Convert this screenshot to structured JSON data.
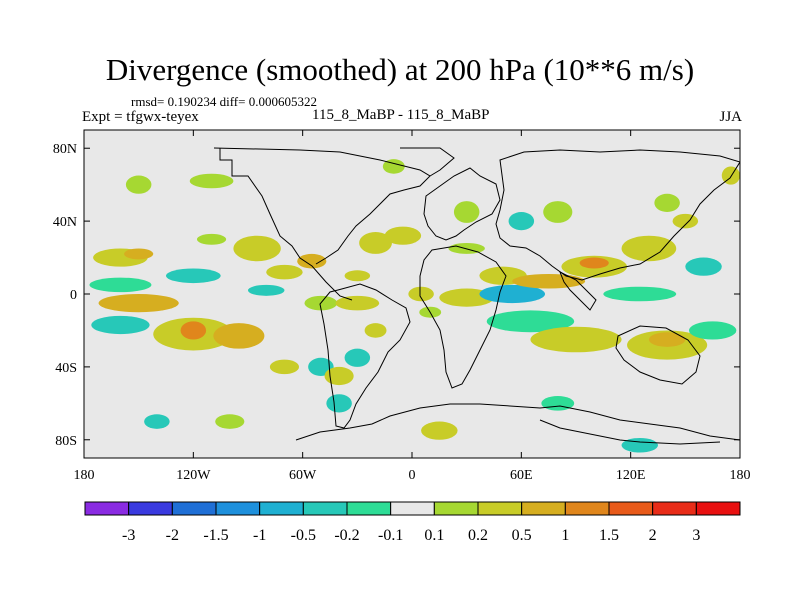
{
  "chart_data": {
    "type": "heatmap",
    "title": "Divergence (smoothed) at 200 hPa (10**6 m/s)",
    "stats_text": "rmsd= 0.190234 diff= 0.000605322",
    "left_string": "Expt = tfgwx-teyex",
    "center_string": "115_8_MaBP - 115_8_MaBP",
    "right_string": "JJA",
    "xlim": [
      -180,
      180
    ],
    "ylim": [
      -90,
      90
    ],
    "xticks": [
      {
        "value": -180,
        "label": "180"
      },
      {
        "value": -120,
        "label": "120W"
      },
      {
        "value": -60,
        "label": "60W"
      },
      {
        "value": 0,
        "label": "0"
      },
      {
        "value": 60,
        "label": "60E"
      },
      {
        "value": 120,
        "label": "120E"
      },
      {
        "value": 180,
        "label": "180"
      }
    ],
    "yticks": [
      {
        "value": 80,
        "label": "80N"
      },
      {
        "value": 40,
        "label": "40N"
      },
      {
        "value": 0,
        "label": "0"
      },
      {
        "value": -40,
        "label": "40S"
      },
      {
        "value": -80,
        "label": "80S"
      }
    ],
    "colorbar": {
      "labels": [
        "-3",
        "-2",
        "-1.5",
        "-1",
        "-0.5",
        "-0.2",
        "-0.1",
        "0.1",
        "0.2",
        "0.5",
        "1",
        "1.5",
        "2",
        "3"
      ],
      "colors": [
        "#8a2be2",
        "#3a3adf",
        "#1f6fd6",
        "#1e90dc",
        "#1fb0d2",
        "#27c8b8",
        "#2edc96",
        "#e8e8e8",
        "#a6d832",
        "#c8cc28",
        "#d6ae20",
        "#e0861c",
        "#e85a1a",
        "#e82c18",
        "#e81010"
      ]
    },
    "blobs": [
      {
        "lon": -160,
        "lat": 20,
        "rx": 15,
        "ry": 5,
        "level": 9
      },
      {
        "lon": -150,
        "lat": 22,
        "rx": 8,
        "ry": 3,
        "level": 10
      },
      {
        "lon": -160,
        "lat": 5,
        "rx": 17,
        "ry": 4,
        "level": 6
      },
      {
        "lon": -150,
        "lat": -5,
        "rx": 22,
        "ry": 5,
        "level": 10
      },
      {
        "lon": -160,
        "lat": -17,
        "rx": 16,
        "ry": 5,
        "level": 5
      },
      {
        "lon": -120,
        "lat": -22,
        "rx": 22,
        "ry": 9,
        "level": 9
      },
      {
        "lon": -120,
        "lat": -20,
        "rx": 7,
        "ry": 5,
        "level": 11
      },
      {
        "lon": -95,
        "lat": -23,
        "rx": 14,
        "ry": 7,
        "level": 10
      },
      {
        "lon": -150,
        "lat": 60,
        "rx": 7,
        "ry": 5,
        "level": 8
      },
      {
        "lon": -110,
        "lat": 62,
        "rx": 12,
        "ry": 4,
        "level": 8
      },
      {
        "lon": -120,
        "lat": 10,
        "rx": 15,
        "ry": 4,
        "level": 5
      },
      {
        "lon": -110,
        "lat": 30,
        "rx": 8,
        "ry": 3,
        "level": 8
      },
      {
        "lon": -85,
        "lat": 25,
        "rx": 13,
        "ry": 7,
        "level": 9
      },
      {
        "lon": -80,
        "lat": 2,
        "rx": 10,
        "ry": 3,
        "level": 5
      },
      {
        "lon": -70,
        "lat": 12,
        "rx": 10,
        "ry": 4,
        "level": 9
      },
      {
        "lon": -55,
        "lat": 18,
        "rx": 8,
        "ry": 4,
        "level": 10
      },
      {
        "lon": -70,
        "lat": -40,
        "rx": 8,
        "ry": 4,
        "level": 9
      },
      {
        "lon": -50,
        "lat": -5,
        "rx": 9,
        "ry": 4,
        "level": 8
      },
      {
        "lon": -30,
        "lat": 10,
        "rx": 7,
        "ry": 3,
        "level": 9
      },
      {
        "lon": -30,
        "lat": -5,
        "rx": 12,
        "ry": 4,
        "level": 9
      },
      {
        "lon": -20,
        "lat": 28,
        "rx": 9,
        "ry": 6,
        "level": 9
      },
      {
        "lon": -50,
        "lat": -40,
        "rx": 7,
        "ry": 5,
        "level": 5
      },
      {
        "lon": -40,
        "lat": -45,
        "rx": 8,
        "ry": 5,
        "level": 9
      },
      {
        "lon": -30,
        "lat": -35,
        "rx": 7,
        "ry": 5,
        "level": 5
      },
      {
        "lon": -20,
        "lat": -20,
        "rx": 6,
        "ry": 4,
        "level": 9
      },
      {
        "lon": -10,
        "lat": 70,
        "rx": 6,
        "ry": 4,
        "level": 8
      },
      {
        "lon": -5,
        "lat": 32,
        "rx": 10,
        "ry": 5,
        "level": 9
      },
      {
        "lon": 5,
        "lat": 0,
        "rx": 7,
        "ry": 4,
        "level": 9
      },
      {
        "lon": 10,
        "lat": -10,
        "rx": 6,
        "ry": 3,
        "level": 8
      },
      {
        "lon": 30,
        "lat": -2,
        "rx": 15,
        "ry": 5,
        "level": 9
      },
      {
        "lon": 50,
        "lat": 10,
        "rx": 13,
        "ry": 5,
        "level": 9
      },
      {
        "lon": 30,
        "lat": 25,
        "rx": 10,
        "ry": 3,
        "level": 8
      },
      {
        "lon": 55,
        "lat": 0,
        "rx": 18,
        "ry": 5,
        "level": 4
      },
      {
        "lon": 65,
        "lat": -15,
        "rx": 24,
        "ry": 6,
        "level": 6
      },
      {
        "lon": 75,
        "lat": 7,
        "rx": 20,
        "ry": 4,
        "level": 10
      },
      {
        "lon": 90,
        "lat": -25,
        "rx": 25,
        "ry": 7,
        "level": 9
      },
      {
        "lon": 100,
        "lat": 15,
        "rx": 18,
        "ry": 6,
        "level": 9
      },
      {
        "lon": 100,
        "lat": 17,
        "rx": 8,
        "ry": 3,
        "level": 11
      },
      {
        "lon": 130,
        "lat": 25,
        "rx": 15,
        "ry": 7,
        "level": 9
      },
      {
        "lon": 125,
        "lat": 0,
        "rx": 20,
        "ry": 4,
        "level": 6
      },
      {
        "lon": 140,
        "lat": -28,
        "rx": 22,
        "ry": 8,
        "level": 9
      },
      {
        "lon": 140,
        "lat": -25,
        "rx": 10,
        "ry": 4,
        "level": 10
      },
      {
        "lon": 165,
        "lat": -20,
        "rx": 13,
        "ry": 5,
        "level": 6
      },
      {
        "lon": 160,
        "lat": 15,
        "rx": 10,
        "ry": 5,
        "level": 5
      },
      {
        "lon": 140,
        "lat": 50,
        "rx": 7,
        "ry": 5,
        "level": 8
      },
      {
        "lon": 150,
        "lat": 40,
        "rx": 7,
        "ry": 4,
        "level": 9
      },
      {
        "lon": 80,
        "lat": 45,
        "rx": 8,
        "ry": 6,
        "level": 8
      },
      {
        "lon": 60,
        "lat": 40,
        "rx": 7,
        "ry": 5,
        "level": 5
      },
      {
        "lon": 30,
        "lat": 45,
        "rx": 7,
        "ry": 6,
        "level": 8
      },
      {
        "lon": 125,
        "lat": -83,
        "rx": 10,
        "ry": 4,
        "level": 5
      },
      {
        "lon": 15,
        "lat": -75,
        "rx": 10,
        "ry": 5,
        "level": 9
      },
      {
        "lon": -100,
        "lat": -70,
        "rx": 8,
        "ry": 4,
        "level": 8
      },
      {
        "lon": -140,
        "lat": -70,
        "rx": 7,
        "ry": 4,
        "level": 5
      },
      {
        "lon": -40,
        "lat": -60,
        "rx": 7,
        "ry": 5,
        "level": 5
      },
      {
        "lon": 80,
        "lat": -60,
        "rx": 9,
        "ry": 4,
        "level": 6
      },
      {
        "lon": 175,
        "lat": 65,
        "rx": 5,
        "ry": 5,
        "level": 9
      }
    ]
  }
}
